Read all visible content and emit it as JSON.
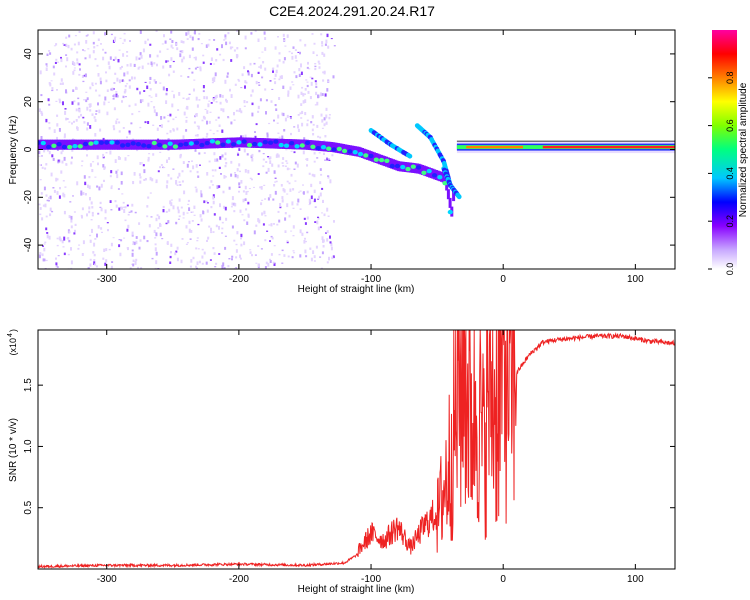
{
  "title": "C2E4.2024.291.20.24.R17",
  "chart_data": [
    {
      "type": "heatmap",
      "xlabel": "Height of straight line (km)",
      "ylabel": "Frequency (Hz)",
      "xlim": [
        -352,
        130
      ],
      "ylim": [
        -50,
        50
      ],
      "xticks": [
        -300,
        -200,
        -100,
        0,
        100
      ],
      "yticks": [
        -40,
        -20,
        0,
        20,
        40
      ],
      "colorbar": {
        "label": "Normalized spectral amplitude",
        "range": [
          0,
          1
        ],
        "ticks": [
          "0.0",
          "0.2",
          "0.4",
          "0.6",
          "0.8"
        ],
        "colors": [
          "#ffffff",
          "#c8a8ff",
          "#8800ff",
          "#0000ff",
          "#00c8ff",
          "#00ff80",
          "#80ff00",
          "#ffff00",
          "#ff8000",
          "#ff0000",
          "#ff00a0"
        ]
      },
      "trace": [
        {
          "x": -352,
          "y": 2,
          "amp": 0.35
        },
        {
          "x": -300,
          "y": 2,
          "amp": 0.35
        },
        {
          "x": -250,
          "y": 2,
          "amp": 0.35
        },
        {
          "x": -200,
          "y": 3,
          "amp": 0.4
        },
        {
          "x": -150,
          "y": 2,
          "amp": 0.4
        },
        {
          "x": -130,
          "y": 1,
          "amp": 0.35
        },
        {
          "x": -110,
          "y": -1,
          "amp": 0.35
        },
        {
          "x": -95,
          "y": -4,
          "amp": 0.35
        },
        {
          "x": -80,
          "y": -7,
          "amp": 0.3
        },
        {
          "x": -65,
          "y": -8,
          "amp": 0.3
        },
        {
          "x": -45,
          "y": -12,
          "amp": 0.3
        },
        {
          "x": -40,
          "y": -26,
          "amp": 0.25
        },
        {
          "x": -35,
          "y": -1,
          "amp": 0.8
        },
        {
          "x": -20,
          "y": 0,
          "amp": 0.8
        },
        {
          "x": 0,
          "y": 1,
          "amp": 0.85
        },
        {
          "x": 50,
          "y": 1,
          "amp": 0.9
        },
        {
          "x": 100,
          "y": 1,
          "amp": 0.9
        },
        {
          "x": 130,
          "y": 1,
          "amp": 0.9
        }
      ],
      "branches": [
        {
          "x": [
            -65,
            -55,
            -45,
            -40
          ],
          "y": [
            10,
            5,
            -5,
            -15
          ]
        },
        {
          "x": [
            -100,
            -85,
            -70
          ],
          "y": [
            8,
            2,
            -3
          ]
        },
        {
          "x": [
            -45,
            -40,
            -33
          ],
          "y": [
            -8,
            -15,
            -20
          ]
        }
      ]
    },
    {
      "type": "line",
      "xlabel": "Height of straight line (km)",
      "ylabel": "SNR (10 * v/v)",
      "yscale_label": "(x10",
      "yscale_exp": "4",
      "xlim": [
        -352,
        130
      ],
      "ylim": [
        0,
        1.95
      ],
      "xticks": [
        -300,
        -200,
        -100,
        0,
        100
      ],
      "yticks": [
        "0.5",
        "1.0",
        "1.5"
      ],
      "color": "#ee2222",
      "series": {
        "x": [
          -352,
          -300,
          -250,
          -200,
          -150,
          -120,
          -110,
          -100,
          -90,
          -80,
          -70,
          -60,
          -50,
          -45,
          -40,
          -35,
          -30,
          -25,
          -20,
          -15,
          -10,
          -5,
          0,
          10,
          20,
          30,
          40,
          50,
          60,
          70,
          80,
          90,
          100,
          110,
          120,
          130
        ],
        "y": [
          0.02,
          0.03,
          0.03,
          0.04,
          0.03,
          0.05,
          0.12,
          0.25,
          0.2,
          0.3,
          0.15,
          0.3,
          0.4,
          0.65,
          0.9,
          1.35,
          1.8,
          1.2,
          1.4,
          1.0,
          1.55,
          1.3,
          1.7,
          1.6,
          1.75,
          1.85,
          1.87,
          1.88,
          1.89,
          1.9,
          1.9,
          1.9,
          1.88,
          1.86,
          1.85,
          1.84
        ]
      }
    }
  ]
}
